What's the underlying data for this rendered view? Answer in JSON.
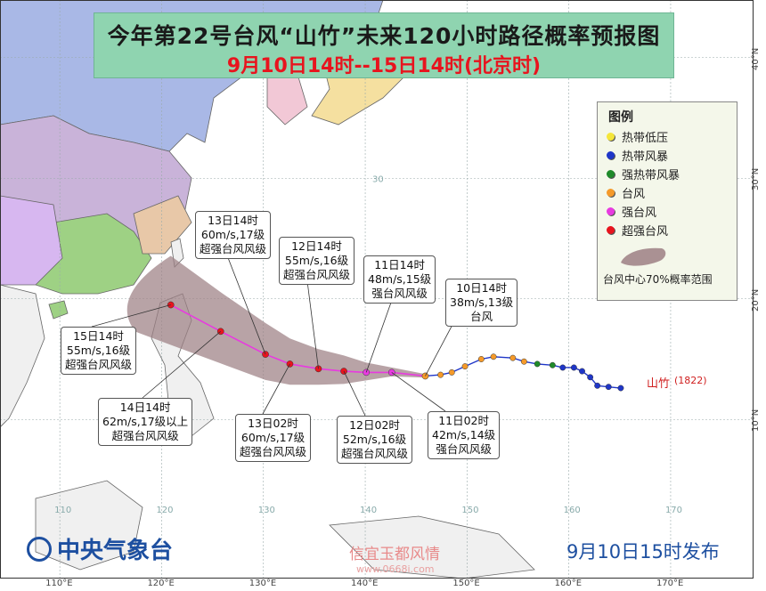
{
  "header": {
    "title": "今年第22号台风“山竹”未来120小时路径概率预报图",
    "subtitle": "9月10日14时--15日14时(北京时)"
  },
  "legend": {
    "title": "图例",
    "items": [
      {
        "label": "热带低压",
        "color": "#f5e63a"
      },
      {
        "label": "热带风暴",
        "color": "#1f36c8"
      },
      {
        "label": "强热带风暴",
        "color": "#1f8a2a"
      },
      {
        "label": "台风",
        "color": "#f59a2a"
      },
      {
        "label": "强台风",
        "color": "#e83ae0"
      },
      {
        "label": "超强台风",
        "color": "#e8141e"
      }
    ],
    "range_label": "台风中心70%概率范围",
    "range_color": "#9c7f84"
  },
  "axes": {
    "lon_ticks": [
      "110°E",
      "120°E",
      "130°E",
      "140°E",
      "150°E",
      "160°E",
      "170°E"
    ],
    "lat_ticks": [
      "10°N",
      "20°N",
      "30°N",
      "40°N"
    ],
    "inner_lon_labels": [
      "110",
      "120",
      "130",
      "140",
      "150",
      "160",
      "170"
    ],
    "inner_lat_labels": [
      "10",
      "20",
      "30",
      "40"
    ]
  },
  "forecast_points": [
    {
      "time": "10日14时",
      "wind": "38m/s,13级",
      "category": "台风",
      "lon": 145.9,
      "lat": 13.6
    },
    {
      "time": "11日02时",
      "wind": "42m/s,14级",
      "category": "强台风风级",
      "lon": 142.6,
      "lat": 13.9
    },
    {
      "time": "11日14时",
      "wind": "48m/s,15级",
      "category": "强台风风级",
      "lon": 140.1,
      "lat": 13.9
    },
    {
      "time": "12日02时",
      "wind": "52m/s,16级",
      "category": "超强台风风级",
      "lon": 137.9,
      "lat": 14.0
    },
    {
      "time": "12日14时",
      "wind": "55m/s,16级",
      "category": "超强台风风级",
      "lon": 135.4,
      "lat": 14.2
    },
    {
      "time": "13日02时",
      "wind": "60m/s,17级",
      "category": "超强台风风级",
      "lon": 132.6,
      "lat": 14.6
    },
    {
      "time": "13日14时",
      "wind": "60m/s,17级",
      "category": "超强台风风级",
      "lon": 130.2,
      "lat": 15.4
    },
    {
      "time": "14日14时",
      "wind": "62m/s,17级以上",
      "category": "超强台风风级",
      "lon": 125.8,
      "lat": 17.3
    },
    {
      "time": "15日14时",
      "wind": "55m/s,16级",
      "category": "超强台风风级",
      "lon": 120.9,
      "lat": 19.5
    }
  ],
  "storm": {
    "name": "山竹",
    "id": "(1822)"
  },
  "org": {
    "name": "中央气象台"
  },
  "issue_time": "9月10日15时发布",
  "watermark": {
    "text": "信宜玉都风情",
    "url": "www.0668i.com"
  }
}
